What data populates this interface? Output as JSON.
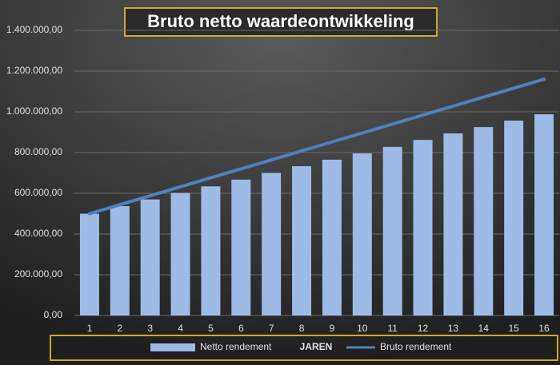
{
  "chart_data": {
    "type": "combo",
    "title": "Bruto netto waardeontwikkeling",
    "x_label": "JAREN",
    "categories": [
      "1",
      "2",
      "3",
      "4",
      "5",
      "6",
      "7",
      "8",
      "9",
      "10",
      "11",
      "12",
      "13",
      "14",
      "15",
      "16"
    ],
    "series": [
      {
        "name": "Netto rendement",
        "type": "bar",
        "color": "#9dbbe6",
        "values": [
          500000,
          537000,
          570000,
          602000,
          634000,
          667000,
          700000,
          733000,
          765000,
          796000,
          828000,
          862000,
          894000,
          925000,
          957000,
          988000
        ]
      },
      {
        "name": "Bruto rendement",
        "type": "line",
        "color": "#4f81bd",
        "values": [
          500000,
          544000,
          588000,
          632000,
          676000,
          720000,
          764000,
          808000,
          852000,
          896000,
          940000,
          984000,
          1028000,
          1072000,
          1116000,
          1160000
        ]
      }
    ],
    "ylim": [
      0,
      1400000
    ],
    "yticks": [
      {
        "value": 0,
        "label": "0,00"
      },
      {
        "value": 200000,
        "label": "200.000,00"
      },
      {
        "value": 400000,
        "label": "400.000,00"
      },
      {
        "value": 600000,
        "label": "600.000,00"
      },
      {
        "value": 800000,
        "label": "800.000,00"
      },
      {
        "value": 1000000,
        "label": "1.000.000,00"
      },
      {
        "value": 1200000,
        "label": "1.200.000,00"
      },
      {
        "value": 1400000,
        "label": "1.400.000,00"
      }
    ],
    "grid": true,
    "legend": "bottom"
  }
}
